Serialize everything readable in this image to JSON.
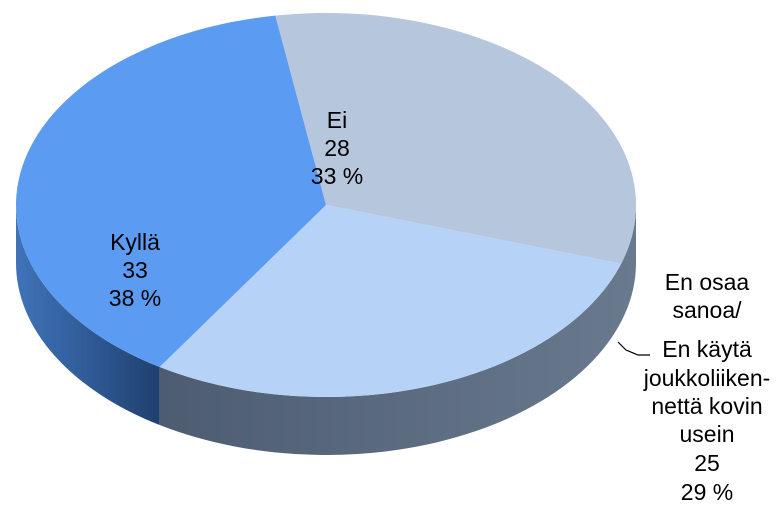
{
  "chart_data": {
    "type": "pie",
    "style": "3d",
    "slices": [
      {
        "label": "Ei",
        "value": 28,
        "percent_label": "33 %",
        "color": "#b6c6dc"
      },
      {
        "label": "En osaa sanoa/ En käytä joukkoliikennettä kovin usein",
        "value": 25,
        "percent_label": "29 %",
        "color": "#b6d2f6"
      },
      {
        "label": "Kyllä",
        "value": 33,
        "percent_label": "38 %",
        "color": "#5b9cf2"
      }
    ],
    "labels": {
      "ei": {
        "name": "Ei",
        "value": "28",
        "percent": "33 %"
      },
      "enosaa": {
        "line1": "En osaa",
        "line2": "sanoa/",
        "line3": "En käytä",
        "line4": "joukkoliiken-",
        "line5": "nettä kovin",
        "line6": "usein",
        "value": "25",
        "percent": "29 %"
      },
      "kylla": {
        "name": "Kyllä",
        "value": "33",
        "percent": "38 %"
      }
    }
  }
}
